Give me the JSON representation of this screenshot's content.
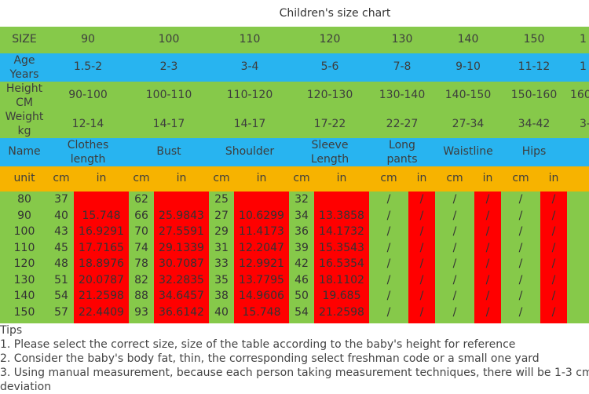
{
  "title": "Children's size chart",
  "size_row": {
    "label": "SIZE",
    "values": [
      "90",
      "100",
      "110",
      "120",
      "130",
      "140",
      "150",
      "1"
    ]
  },
  "age_row": {
    "label_line1": "Age",
    "label_line2": "Years",
    "values": [
      "1.5-2",
      "2-3",
      "3-4",
      "5-6",
      "7-8",
      "9-10",
      "11-12",
      "1"
    ]
  },
  "height_row": {
    "label_line1": "Height",
    "label_line2": "CM",
    "values": [
      "90-100",
      "100-110",
      "110-120",
      "120-130",
      "130-140",
      "140-150",
      "150-160",
      "160"
    ]
  },
  "weight_row": {
    "label_line1": "Weight",
    "label_line2": "kg",
    "values": [
      "12-14",
      "14-17",
      "14-17",
      "17-22",
      "22-27",
      "27-34",
      "34-42",
      "3-"
    ]
  },
  "name_row": {
    "label": "Name",
    "columns": [
      {
        "line1": "Clothes",
        "line2": "length"
      },
      {
        "line1": "Bust",
        "line2": ""
      },
      {
        "line1": "Shoulder",
        "line2": ""
      },
      {
        "line1": "Sleeve",
        "line2": "Length"
      },
      {
        "line1": "Long",
        "line2": "pants"
      },
      {
        "line1": "Waistline",
        "line2": ""
      },
      {
        "line1": "Hips",
        "line2": ""
      }
    ]
  },
  "unit_row": {
    "label": "unit",
    "units": [
      "cm",
      "in",
      "cm",
      "in",
      "cm",
      "in",
      "cm",
      "in",
      "cm",
      "in",
      "cm",
      "in",
      "cm",
      "in"
    ]
  },
  "rows": [
    {
      "size": "80",
      "cl_cm": "37",
      "cl_in": "",
      "bu_cm": "62",
      "bu_in": "",
      "sh_cm": "25",
      "sh_in": "",
      "sl_cm": "32",
      "sl_in": "",
      "lp_cm": "/",
      "lp_in": "/",
      "wa_cm": "/",
      "wa_in": "/",
      "hi_cm": "/",
      "hi_in": "/"
    },
    {
      "size": "90",
      "cl_cm": "40",
      "cl_in": "15.748",
      "bu_cm": "66",
      "bu_in": "25.9843",
      "sh_cm": "27",
      "sh_in": "10.6299",
      "sl_cm": "34",
      "sl_in": "13.3858",
      "lp_cm": "/",
      "lp_in": "/",
      "wa_cm": "/",
      "wa_in": "/",
      "hi_cm": "/",
      "hi_in": "/"
    },
    {
      "size": "100",
      "cl_cm": "43",
      "cl_in": "16.9291",
      "bu_cm": "70",
      "bu_in": "27.5591",
      "sh_cm": "29",
      "sh_in": "11.4173",
      "sl_cm": "36",
      "sl_in": "14.1732",
      "lp_cm": "/",
      "lp_in": "/",
      "wa_cm": "/",
      "wa_in": "/",
      "hi_cm": "/",
      "hi_in": "/"
    },
    {
      "size": "110",
      "cl_cm": "45",
      "cl_in": "17.7165",
      "bu_cm": "74",
      "bu_in": "29.1339",
      "sh_cm": "31",
      "sh_in": "12.2047",
      "sl_cm": "39",
      "sl_in": "15.3543",
      "lp_cm": "/",
      "lp_in": "/",
      "wa_cm": "/",
      "wa_in": "/",
      "hi_cm": "/",
      "hi_in": "/"
    },
    {
      "size": "120",
      "cl_cm": "48",
      "cl_in": "18.8976",
      "bu_cm": "78",
      "bu_in": "30.7087",
      "sh_cm": "33",
      "sh_in": "12.9921",
      "sl_cm": "42",
      "sl_in": "16.5354",
      "lp_cm": "/",
      "lp_in": "/",
      "wa_cm": "/",
      "wa_in": "/",
      "hi_cm": "/",
      "hi_in": "/"
    },
    {
      "size": "130",
      "cl_cm": "51",
      "cl_in": "20.0787",
      "bu_cm": "82",
      "bu_in": "32.2835",
      "sh_cm": "35",
      "sh_in": "13.7795",
      "sl_cm": "46",
      "sl_in": "18.1102",
      "lp_cm": "/",
      "lp_in": "/",
      "wa_cm": "/",
      "wa_in": "/",
      "hi_cm": "/",
      "hi_in": "/"
    },
    {
      "size": "140",
      "cl_cm": "54",
      "cl_in": "21.2598",
      "bu_cm": "88",
      "bu_in": "34.6457",
      "sh_cm": "38",
      "sh_in": "14.9606",
      "sl_cm": "50",
      "sl_in": "19.685",
      "lp_cm": "/",
      "lp_in": "/",
      "wa_cm": "/",
      "wa_in": "/",
      "hi_cm": "/",
      "hi_in": "/"
    },
    {
      "size": "150",
      "cl_cm": "57",
      "cl_in": "22.4409",
      "bu_cm": "93",
      "bu_in": "36.6142",
      "sh_cm": "40",
      "sh_in": "15.748",
      "sl_cm": "54",
      "sl_in": "21.2598",
      "lp_cm": "/",
      "lp_in": "/",
      "wa_cm": "/",
      "wa_in": "/",
      "hi_cm": "/",
      "hi_in": "/"
    }
  ],
  "tips": {
    "heading": "Tips",
    "lines": [
      "1. Please select the correct size, size of the table according to the baby's height for reference",
      "2. Consider the baby's body fat, thin, the corresponding select freshman code or a small one yard",
      "3. Using manual measurement, because each person taking measurement techniques, there will be 1-3 cm",
      "deviation"
    ]
  },
  "colors": {
    "green": "#86c94a",
    "blue": "#28b4f0",
    "orange": "#f7b300",
    "red": "#ff0000"
  }
}
